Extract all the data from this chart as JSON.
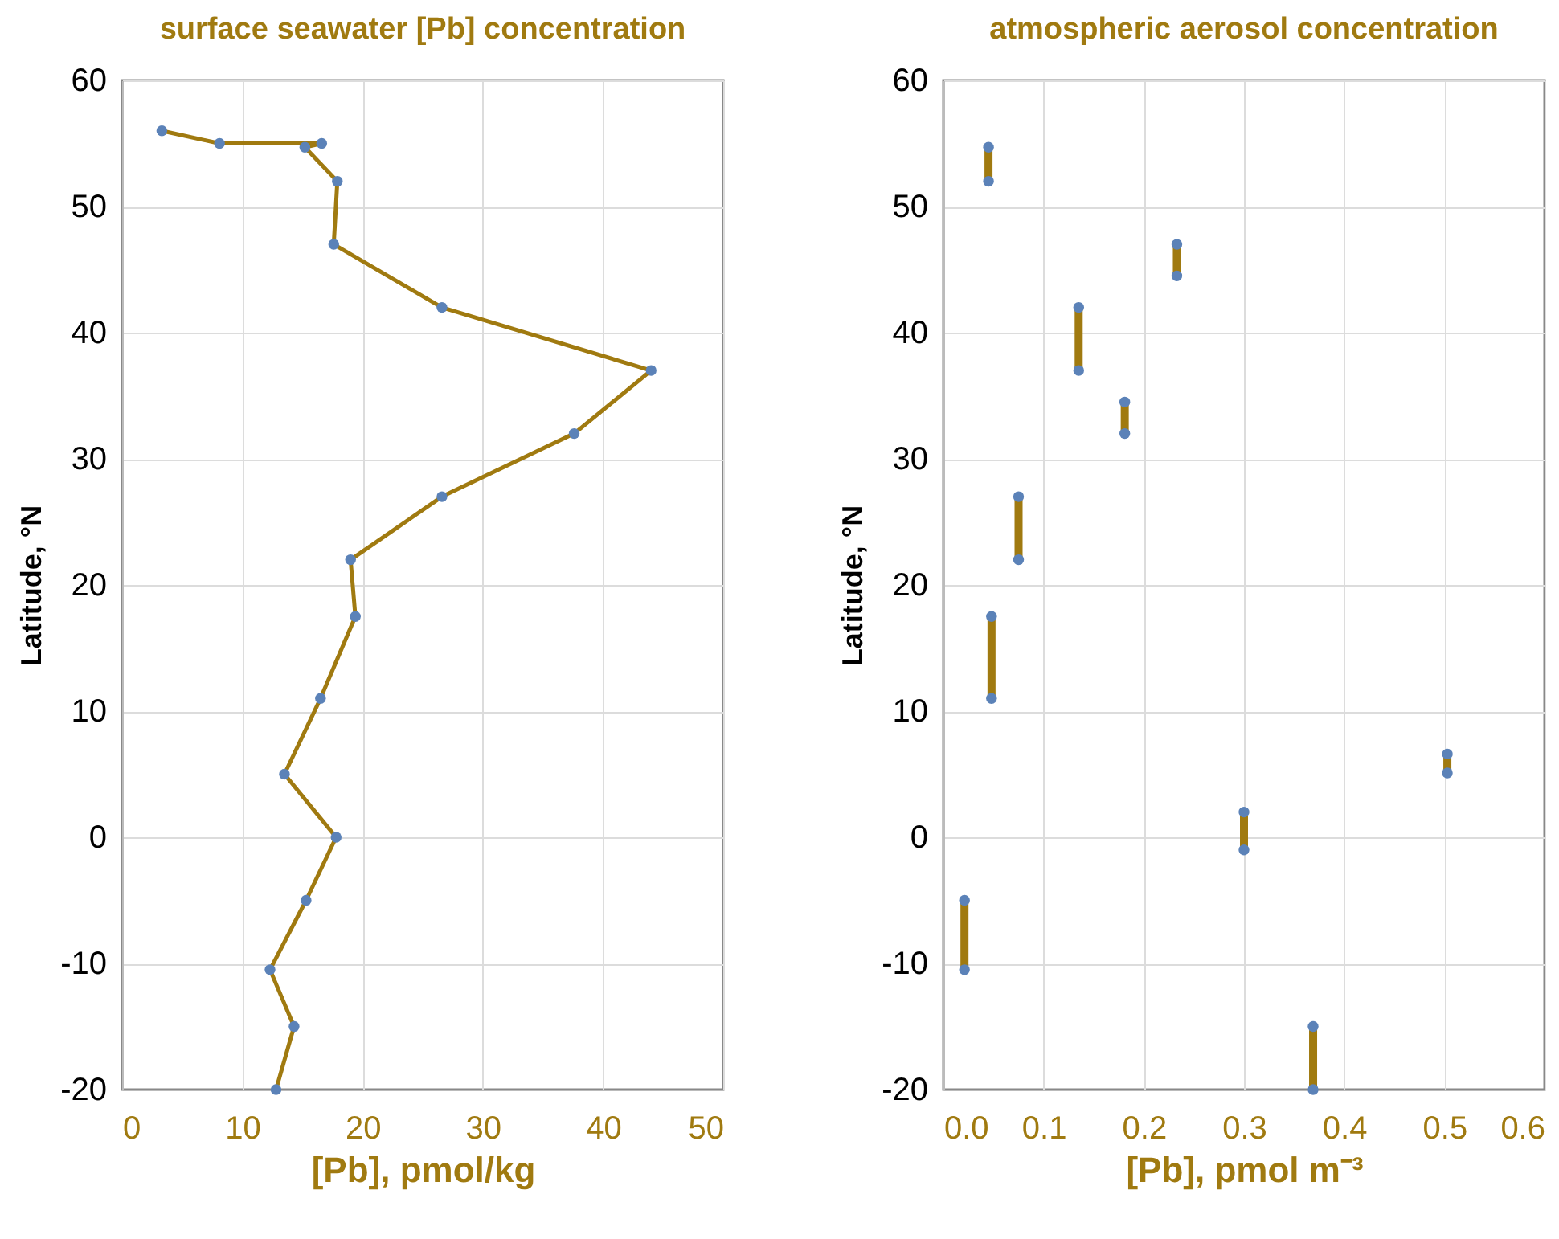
{
  "chart_data": [
    {
      "type": "line",
      "title": "surface seawater [Pb] concentration",
      "xlabel": "[Pb], pmol/kg",
      "ylabel": "Latitude, °N",
      "xlim": [
        0,
        50
      ],
      "xticks": [
        0,
        10,
        20,
        30,
        40,
        50
      ],
      "ylim": [
        -20,
        60
      ],
      "yticks": [
        -20,
        -10,
        0,
        10,
        20,
        30,
        40,
        50,
        60
      ],
      "grid": true,
      "marker": "circle",
      "series": [
        {
          "color": "#a07a10",
          "x": [
            3.3,
            8.1,
            16.6,
            15.2,
            17.9,
            17.6,
            26.6,
            44.0,
            37.6,
            26.6,
            19.0,
            19.4,
            16.5,
            13.5,
            17.8,
            15.3,
            12.3,
            14.3,
            12.8
          ],
          "values": [
            56,
            55,
            55,
            54.7,
            52,
            47,
            42,
            37,
            32,
            27,
            22,
            17.5,
            11,
            5,
            0,
            -5,
            -10.5,
            -15,
            -20
          ]
        }
      ]
    },
    {
      "type": "line",
      "title": "atmospheric aerosol concentration",
      "xlabel": "[Pb], pmol m⁻³",
      "ylabel": "Latitude, °N",
      "xlim": [
        0,
        0.6
      ],
      "xticks": [
        {
          "value": 0,
          "label": "0.0"
        },
        0.1,
        0.2,
        0.3,
        0.4,
        0.5,
        0.6
      ],
      "ylim": [
        -20,
        60
      ],
      "yticks": [
        -20,
        -10,
        0,
        10,
        20,
        30,
        40,
        50,
        60
      ],
      "grid": true,
      "marker": "circle",
      "series": [
        {
          "color": "#a07a10",
          "x": [
            0.045,
            0.045
          ],
          "values": [
            54.7,
            52
          ]
        },
        {
          "color": "#a07a10",
          "x": [
            0.233,
            0.233
          ],
          "values": [
            47,
            44.5
          ]
        },
        {
          "color": "#a07a10",
          "x": [
            0.135,
            0.135
          ],
          "values": [
            42,
            37
          ]
        },
        {
          "color": "#a07a10",
          "x": [
            0.181,
            0.181
          ],
          "values": [
            34.5,
            32
          ]
        },
        {
          "color": "#a07a10",
          "x": [
            0.075,
            0.075
          ],
          "values": [
            27,
            22
          ]
        },
        {
          "color": "#a07a10",
          "x": [
            0.048,
            0.048
          ],
          "values": [
            17.5,
            11
          ]
        },
        {
          "color": "#a07a10",
          "x": [
            0.021,
            0.021
          ],
          "values": [
            -5,
            -10.5
          ]
        },
        {
          "color": "#a07a10",
          "x": [
            0.3,
            0.3
          ],
          "values": [
            2,
            -1
          ]
        },
        {
          "color": "#a07a10",
          "x": [
            0.369,
            0.369
          ],
          "values": [
            -15,
            -20
          ]
        },
        {
          "color": "#a07a10",
          "x": [
            0.503,
            0.503
          ],
          "values": [
            6.6,
            5.1
          ]
        }
      ]
    }
  ]
}
